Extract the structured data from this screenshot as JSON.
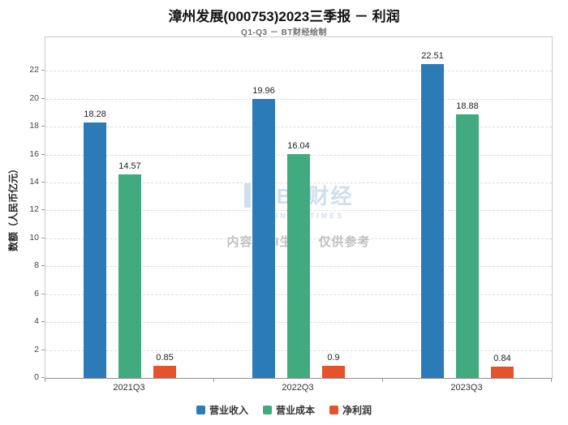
{
  "title": "漳州发展(000753)2023三季报 － 利润",
  "subtitle": "Q1-Q3 － BT财经绘制",
  "watermark": {
    "brand": "BT财经",
    "brand_sub": "BUSINESSTIMES",
    "notice": "内容由AI生成，仅供参考"
  },
  "chart_data": {
    "type": "bar",
    "categories": [
      "2021Q3",
      "2022Q3",
      "2023Q3"
    ],
    "series": [
      {
        "name": "营业收入",
        "color": "#2b7bb9",
        "values": [
          18.28,
          19.96,
          22.51
        ]
      },
      {
        "name": "营业成本",
        "color": "#41ab7f",
        "values": [
          14.57,
          16.04,
          18.88
        ]
      },
      {
        "name": "净利润",
        "color": "#e4532c",
        "values": [
          0.85,
          0.9,
          0.84
        ]
      }
    ],
    "title": "漳州发展(000753)2023三季报 － 利润",
    "xlabel": "",
    "ylabel": "数额（人民币亿元）",
    "ylim": [
      0,
      24.4
    ],
    "yticks": [
      0,
      2,
      4,
      6,
      8,
      10,
      12,
      14,
      16,
      18,
      20,
      22
    ],
    "grid": true,
    "legend_position": "bottom"
  }
}
